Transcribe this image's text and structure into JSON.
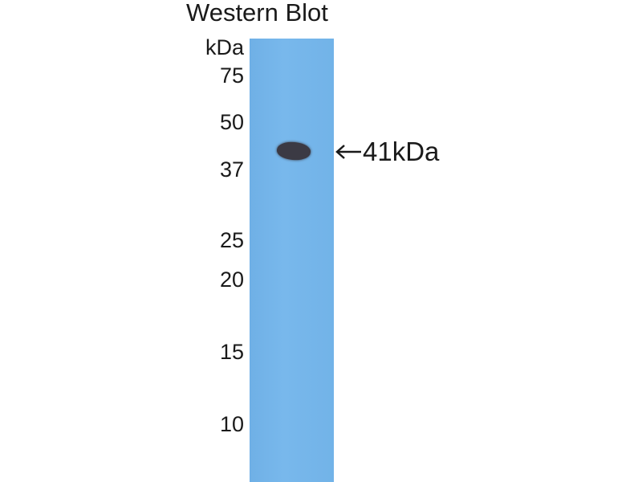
{
  "title": "Western Blot",
  "unit_label": "kDa",
  "markers": [
    "75",
    "50",
    "37",
    "25",
    "20",
    "15",
    "10"
  ],
  "band": {
    "label": "41kDa",
    "arrow_icon": "left-arrow-icon"
  },
  "colors": {
    "membrane": "#74b4e8",
    "band": "#3b3a44"
  }
}
